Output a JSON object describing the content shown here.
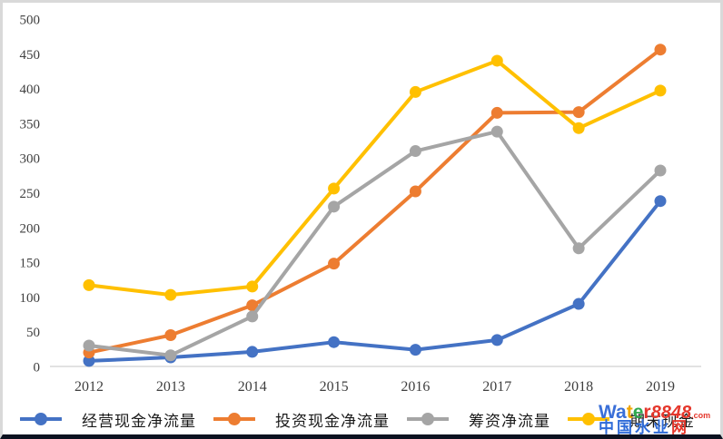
{
  "chart_data": {
    "type": "line",
    "x": [
      2012,
      2013,
      2014,
      2015,
      2016,
      2017,
      2018,
      2019
    ],
    "series": [
      {
        "name": "经营现金净流量",
        "color": "#4472C4",
        "values": [
          8,
          13,
          21,
          35,
          24,
          38,
          90,
          238
        ]
      },
      {
        "name": "投资现金净流量",
        "color": "#ED7D31",
        "values": [
          20,
          45,
          88,
          148,
          252,
          365,
          366,
          456
        ]
      },
      {
        "name": "筹资净流量",
        "color": "#A5A5A5",
        "values": [
          30,
          16,
          72,
          230,
          310,
          338,
          170,
          282
        ]
      },
      {
        "name": "期末现金",
        "color": "#FFC000",
        "values": [
          117,
          103,
          115,
          256,
          395,
          440,
          343,
          397
        ]
      }
    ],
    "title": "",
    "xlabel": "",
    "ylabel": "",
    "ylim": [
      0,
      500
    ],
    "ytick_step": 50,
    "grid": false,
    "legend_position": "bottom",
    "axis_color": "#D9D9D9",
    "text_color": "#3F3F3F",
    "marker": "circle"
  },
  "watermark": {
    "line1": [
      {
        "t": "W",
        "c": "#3a6fd8"
      },
      {
        "t": "a",
        "c": "#3a6fd8"
      },
      {
        "t": "t",
        "c": "#f0a500"
      },
      {
        "t": "e",
        "c": "#2fa84f"
      },
      {
        "t": "r",
        "c": "#e5372c"
      },
      {
        "t": "8848",
        "c": "#e5372c",
        "italic": true
      },
      {
        "t": ".com",
        "c": "#e5372c",
        "small": true
      }
    ],
    "line2": [
      {
        "t": "中",
        "c": "#2e6bd8"
      },
      {
        "t": "国",
        "c": "#2e6bd8"
      },
      {
        "t": "水",
        "c": "#2e6bd8"
      },
      {
        "t": "业",
        "c": "#2e6bd8"
      },
      {
        "t": "网",
        "c": "#e5372c"
      }
    ]
  }
}
